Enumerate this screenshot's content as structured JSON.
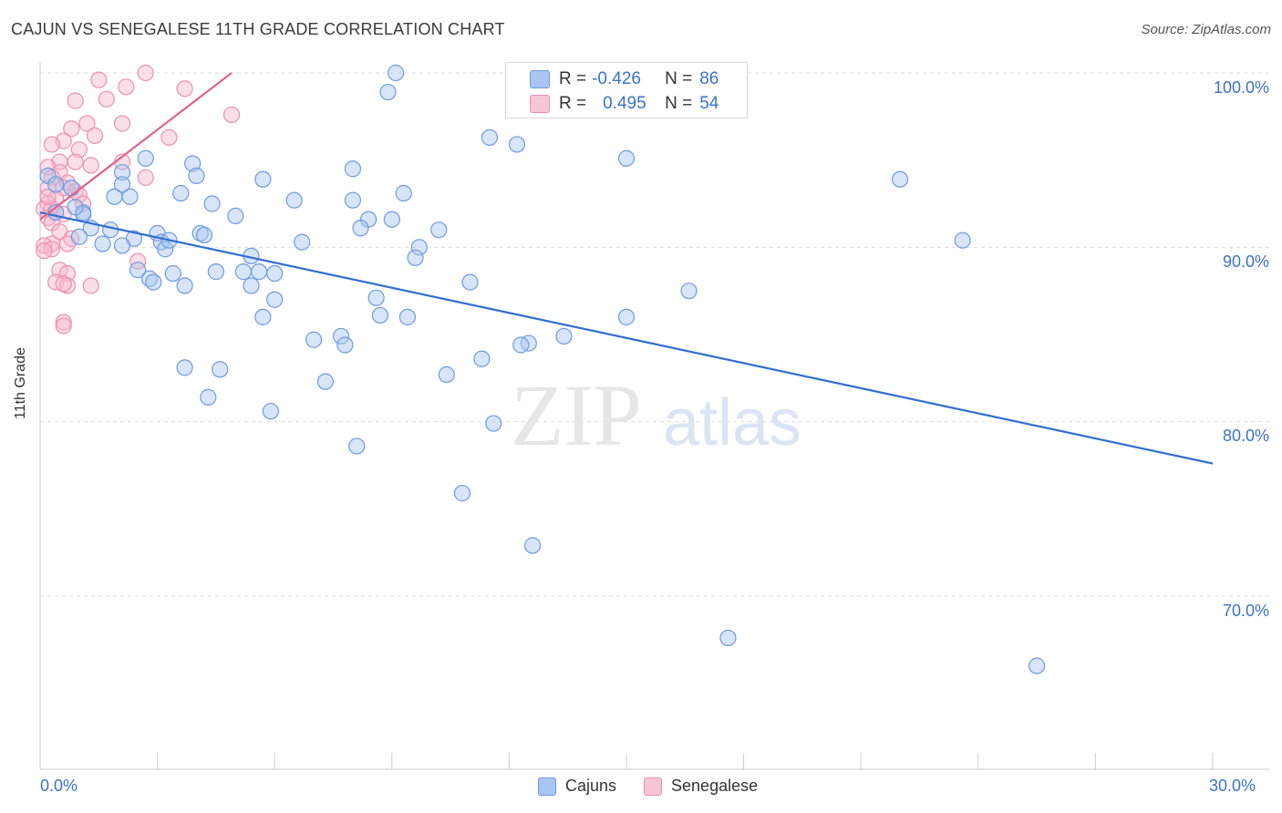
{
  "title": "CAJUN VS SENEGALESE 11TH GRADE CORRELATION CHART",
  "source": "Source: ZipAtlas.com",
  "watermark": {
    "zip": "ZIP",
    "atlas": "atlas"
  },
  "legend": {
    "rows": [
      {
        "r_label": "R =",
        "r_value": "-0.426",
        "n_label": "N =",
        "n_value": "86"
      },
      {
        "r_label": "R =",
        "r_value": "0.495",
        "n_label": "N =",
        "n_value": "54"
      }
    ]
  },
  "bottom_legend": [
    "Cajuns",
    "Senegalese"
  ],
  "colors": {
    "cajun_fill": "#a9c6f0",
    "cajun_stroke": "#6d9be0",
    "cajun_line": "#2e6fd0",
    "seneg_fill": "#f7b7cb",
    "seneg_stroke": "#ee8fb0",
    "seneg_line": "#e0628c",
    "tick_text": "#3b73c9",
    "grid": "#dddddd"
  },
  "chart_data": {
    "type": "scatter",
    "title": "CAJUN VS SENEGALESE 11TH GRADE CORRELATION CHART",
    "xlabel": "",
    "ylabel": "11th Grade",
    "xlim": [
      0,
      30
    ],
    "ylim": [
      62,
      101
    ],
    "x_tick_labels": [
      "0.0%",
      "30.0%"
    ],
    "y_ticks": [
      70,
      80,
      90,
      100
    ],
    "y_tick_labels": [
      "70.0%",
      "80.0%",
      "90.0%",
      "100.0%"
    ],
    "grid": true,
    "series": [
      {
        "name": "Cajuns",
        "r": -0.426,
        "n": 86,
        "trend": [
          [
            0,
            92.0
          ],
          [
            30,
            77.6
          ]
        ],
        "points": [
          [
            9.1,
            100.0
          ],
          [
            8.9,
            98.9
          ],
          [
            11.5,
            96.3
          ],
          [
            12.2,
            95.9
          ],
          [
            2.7,
            95.1
          ],
          [
            15.0,
            95.1
          ],
          [
            3.9,
            94.8
          ],
          [
            8.0,
            94.5
          ],
          [
            0.2,
            94.1
          ],
          [
            2.1,
            94.3
          ],
          [
            4.0,
            94.1
          ],
          [
            5.7,
            93.9
          ],
          [
            22.0,
            93.9
          ],
          [
            0.4,
            93.6
          ],
          [
            2.1,
            93.6
          ],
          [
            0.8,
            93.4
          ],
          [
            3.6,
            93.1
          ],
          [
            9.3,
            93.1
          ],
          [
            1.9,
            92.9
          ],
          [
            2.3,
            92.9
          ],
          [
            6.5,
            92.7
          ],
          [
            8.0,
            92.7
          ],
          [
            4.4,
            92.5
          ],
          [
            0.4,
            92.0
          ],
          [
            1.1,
            92.0
          ],
          [
            5.0,
            91.8
          ],
          [
            8.4,
            91.6
          ],
          [
            9.0,
            91.6
          ],
          [
            8.2,
            91.1
          ],
          [
            1.3,
            91.1
          ],
          [
            1.8,
            91.0
          ],
          [
            10.2,
            91.0
          ],
          [
            3.0,
            90.8
          ],
          [
            4.1,
            90.8
          ],
          [
            1.0,
            90.6
          ],
          [
            2.4,
            90.5
          ],
          [
            3.1,
            90.3
          ],
          [
            6.7,
            90.3
          ],
          [
            23.6,
            90.4
          ],
          [
            1.6,
            90.2
          ],
          [
            2.1,
            90.1
          ],
          [
            9.7,
            90.0
          ],
          [
            3.2,
            89.9
          ],
          [
            5.4,
            89.5
          ],
          [
            9.6,
            89.4
          ],
          [
            2.5,
            88.7
          ],
          [
            4.5,
            88.6
          ],
          [
            5.2,
            88.6
          ],
          [
            5.6,
            88.6
          ],
          [
            6.0,
            88.5
          ],
          [
            3.4,
            88.5
          ],
          [
            2.8,
            88.2
          ],
          [
            2.9,
            88.0
          ],
          [
            11.0,
            88.0
          ],
          [
            3.7,
            87.8
          ],
          [
            5.4,
            87.8
          ],
          [
            16.6,
            87.5
          ],
          [
            8.6,
            87.1
          ],
          [
            6.0,
            87.0
          ],
          [
            5.7,
            86.0
          ],
          [
            8.7,
            86.1
          ],
          [
            9.4,
            86.0
          ],
          [
            15.0,
            86.0
          ],
          [
            13.4,
            84.9
          ],
          [
            7.7,
            84.9
          ],
          [
            7.0,
            84.7
          ],
          [
            12.5,
            84.5
          ],
          [
            12.3,
            84.4
          ],
          [
            7.8,
            84.4
          ],
          [
            11.3,
            83.6
          ],
          [
            3.7,
            83.1
          ],
          [
            4.6,
            83.0
          ],
          [
            10.4,
            82.7
          ],
          [
            7.3,
            82.3
          ],
          [
            4.3,
            81.4
          ],
          [
            5.9,
            80.6
          ],
          [
            11.6,
            79.9
          ],
          [
            8.1,
            78.6
          ],
          [
            10.8,
            75.9
          ],
          [
            12.6,
            72.9
          ],
          [
            17.6,
            67.6
          ],
          [
            25.5,
            66.0
          ],
          [
            1.1,
            91.9
          ],
          [
            3.3,
            90.4
          ],
          [
            0.9,
            92.3
          ],
          [
            4.2,
            90.7
          ]
        ]
      },
      {
        "name": "Senegalese",
        "r": 0.495,
        "n": 54,
        "trend": [
          [
            0,
            91.6
          ],
          [
            4.9,
            100.0
          ]
        ],
        "points": [
          [
            2.7,
            100.0
          ],
          [
            1.5,
            99.6
          ],
          [
            2.2,
            99.2
          ],
          [
            3.7,
            99.1
          ],
          [
            0.9,
            98.4
          ],
          [
            1.7,
            98.5
          ],
          [
            4.9,
            97.6
          ],
          [
            1.2,
            97.1
          ],
          [
            2.1,
            97.1
          ],
          [
            0.8,
            96.8
          ],
          [
            1.4,
            96.4
          ],
          [
            3.3,
            96.3
          ],
          [
            0.6,
            96.1
          ],
          [
            0.3,
            95.9
          ],
          [
            1.0,
            95.6
          ],
          [
            0.5,
            94.9
          ],
          [
            0.9,
            94.9
          ],
          [
            2.1,
            94.9
          ],
          [
            0.2,
            94.6
          ],
          [
            1.3,
            94.7
          ],
          [
            0.5,
            94.3
          ],
          [
            0.3,
            94.0
          ],
          [
            2.7,
            94.0
          ],
          [
            0.7,
            93.7
          ],
          [
            0.6,
            93.4
          ],
          [
            0.2,
            93.4
          ],
          [
            0.9,
            93.2
          ],
          [
            1.0,
            93.0
          ],
          [
            0.4,
            92.8
          ],
          [
            0.2,
            92.5
          ],
          [
            1.1,
            92.5
          ],
          [
            0.1,
            92.2
          ],
          [
            0.3,
            92.2
          ],
          [
            0.4,
            92.0
          ],
          [
            0.6,
            91.9
          ],
          [
            0.2,
            91.7
          ],
          [
            0.3,
            91.4
          ],
          [
            0.5,
            90.9
          ],
          [
            0.8,
            90.5
          ],
          [
            0.3,
            90.2
          ],
          [
            0.1,
            90.1
          ],
          [
            0.7,
            90.2
          ],
          [
            0.3,
            89.9
          ],
          [
            0.1,
            89.8
          ],
          [
            2.5,
            89.2
          ],
          [
            0.5,
            88.7
          ],
          [
            0.7,
            88.5
          ],
          [
            0.4,
            88.0
          ],
          [
            0.7,
            87.8
          ],
          [
            1.3,
            87.8
          ],
          [
            0.6,
            87.9
          ],
          [
            0.6,
            85.7
          ],
          [
            0.6,
            85.5
          ],
          [
            0.2,
            92.9
          ]
        ]
      }
    ]
  }
}
